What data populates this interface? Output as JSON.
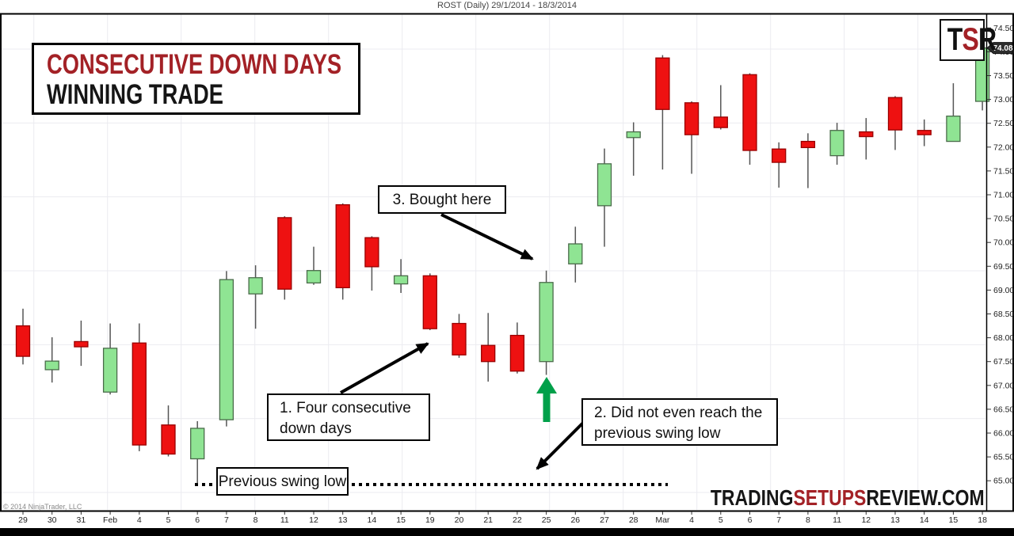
{
  "header": {
    "title": "ROST (Daily)  29/1/2014 - 18/3/2014"
  },
  "branding": {
    "logo_t": "T",
    "logo_s": "S",
    "logo_r": "R",
    "watermark_trading": "TRADING",
    "watermark_setups": "SETUPS",
    "watermark_review": "REVIEW.COM",
    "copyright": "© 2014 NinjaTrader, LLC",
    "accent_red": "#a32126"
  },
  "annotations": {
    "headline_line1": "CONSECUTIVE DOWN DAYS",
    "headline_line2": "WINNING TRADE",
    "bought_here": "3. Bought here",
    "four_consecutive_line1": "1. Four consecutive",
    "four_consecutive_line2": "down days",
    "not_reach_line1": "2. Did not even reach the",
    "not_reach_line2": "previous swing low",
    "swing_low": "Previous swing low"
  },
  "price_axis": {
    "ticks": [
      "74.50",
      "74.00",
      "73.50",
      "73.00",
      "72.50",
      "72.00",
      "71.50",
      "71.00",
      "70.50",
      "70.00",
      "69.50",
      "69.00",
      "68.50",
      "68.00",
      "67.50",
      "67.00",
      "66.50",
      "66.00",
      "65.50",
      "65.00"
    ],
    "last_price": "74.08"
  },
  "chart_data": {
    "type": "candlestick",
    "title": "ROST (Daily)  29/1/2014 - 18/3/2014",
    "symbol": "ROST",
    "timeframe": "Daily",
    "date_range": "29/1/2014 - 18/3/2014",
    "ylim": [
      64.7,
      74.75
    ],
    "grid": true,
    "swing_low_level": 64.92,
    "last_price": 74.08,
    "x_labels": [
      "29",
      "30",
      "31",
      "Feb",
      "4",
      "5",
      "6",
      "7",
      "8",
      "11",
      "12",
      "13",
      "14",
      "15",
      "19",
      "20",
      "21",
      "22",
      "25",
      "26",
      "27",
      "28",
      "Mar",
      "4",
      "5",
      "6",
      "7",
      "8",
      "11",
      "12",
      "13",
      "14",
      "15",
      "18"
    ],
    "candles": [
      {
        "label": "29",
        "o": 68.25,
        "h": 68.61,
        "l": 67.44,
        "c": 67.61
      },
      {
        "label": "30",
        "o": 67.33,
        "h": 68.01,
        "l": 67.06,
        "c": 67.51
      },
      {
        "label": "31",
        "o": 67.92,
        "h": 68.36,
        "l": 67.41,
        "c": 67.81
      },
      {
        "label": "Feb",
        "o": 66.86,
        "h": 68.3,
        "l": 66.81,
        "c": 67.78
      },
      {
        "label": "4",
        "o": 67.89,
        "h": 68.3,
        "l": 65.62,
        "c": 65.75
      },
      {
        "label": "5",
        "o": 66.17,
        "h": 66.58,
        "l": 65.51,
        "c": 65.56
      },
      {
        "label": "6",
        "o": 65.46,
        "h": 66.25,
        "l": 64.95,
        "c": 66.1
      },
      {
        "label": "7",
        "o": 66.28,
        "h": 69.4,
        "l": 66.14,
        "c": 69.22
      },
      {
        "label": "8",
        "o": 68.92,
        "h": 69.52,
        "l": 68.19,
        "c": 69.26
      },
      {
        "label": "11",
        "o": 70.52,
        "h": 70.55,
        "l": 68.8,
        "c": 69.02
      },
      {
        "label": "12",
        "o": 69.15,
        "h": 69.91,
        "l": 69.11,
        "c": 69.41
      },
      {
        "label": "13",
        "o": 70.79,
        "h": 70.82,
        "l": 68.8,
        "c": 69.05
      },
      {
        "label": "14",
        "o": 70.1,
        "h": 70.13,
        "l": 68.99,
        "c": 69.49
      },
      {
        "label": "15",
        "o": 69.13,
        "h": 69.65,
        "l": 68.94,
        "c": 69.3
      },
      {
        "label": "19",
        "o": 69.3,
        "h": 69.35,
        "l": 68.16,
        "c": 68.19
      },
      {
        "label": "20",
        "o": 68.3,
        "h": 68.5,
        "l": 67.58,
        "c": 67.64
      },
      {
        "label": "21",
        "o": 67.84,
        "h": 68.52,
        "l": 67.08,
        "c": 67.5
      },
      {
        "label": "22",
        "o": 68.05,
        "h": 68.32,
        "l": 67.25,
        "c": 67.3
      },
      {
        "label": "25",
        "o": 67.5,
        "h": 69.41,
        "l": 67.22,
        "c": 69.16
      },
      {
        "label": "26",
        "o": 69.55,
        "h": 70.33,
        "l": 69.16,
        "c": 69.97
      },
      {
        "label": "27",
        "o": 70.77,
        "h": 71.97,
        "l": 69.91,
        "c": 71.65
      },
      {
        "label": "28",
        "o": 72.2,
        "h": 72.52,
        "l": 71.4,
        "c": 72.32
      },
      {
        "label": "Mar",
        "o": 73.87,
        "h": 73.93,
        "l": 71.53,
        "c": 72.79
      },
      {
        "label": "4",
        "o": 72.93,
        "h": 72.96,
        "l": 71.44,
        "c": 72.26
      },
      {
        "label": "5",
        "o": 72.63,
        "h": 73.3,
        "l": 72.37,
        "c": 72.41
      },
      {
        "label": "6",
        "o": 73.52,
        "h": 73.55,
        "l": 71.63,
        "c": 71.93
      },
      {
        "label": "7",
        "o": 71.96,
        "h": 72.1,
        "l": 71.15,
        "c": 71.68
      },
      {
        "label": "8",
        "o": 72.12,
        "h": 72.29,
        "l": 71.14,
        "c": 71.99
      },
      {
        "label": "11",
        "o": 71.82,
        "h": 72.51,
        "l": 71.63,
        "c": 72.35
      },
      {
        "label": "12",
        "o": 72.32,
        "h": 72.61,
        "l": 71.74,
        "c": 72.22
      },
      {
        "label": "13",
        "o": 73.04,
        "h": 73.07,
        "l": 71.94,
        "c": 72.36
      },
      {
        "label": "14",
        "o": 72.35,
        "h": 72.58,
        "l": 72.02,
        "c": 72.26
      },
      {
        "label": "15",
        "o": 72.12,
        "h": 73.34,
        "l": 72.12,
        "c": 72.65
      },
      {
        "label": "18",
        "o": 72.96,
        "h": 74.34,
        "l": 72.77,
        "c": 74.08
      }
    ],
    "colors": {
      "up_fill": "#8fe493",
      "up_border": "#4a6b4a",
      "down_fill": "#ee1111",
      "down_border": "#990000",
      "wick": "#555555",
      "grid": "#ebebf0",
      "green_arrow": "#00a04a",
      "badge_bg": "#2e2e2e"
    }
  }
}
